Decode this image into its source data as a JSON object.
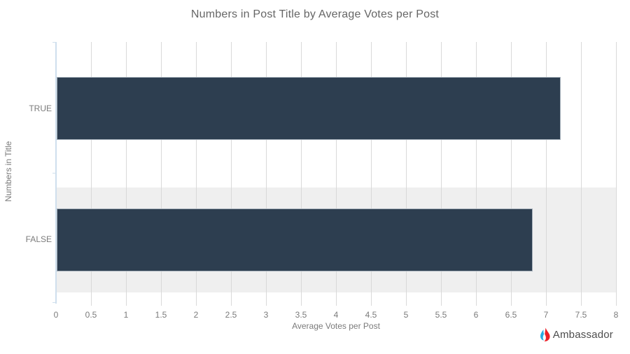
{
  "chart_data": {
    "type": "bar",
    "orientation": "horizontal",
    "title": "Numbers in Post Title by Average Votes per Post",
    "categories": [
      "TRUE",
      "FALSE"
    ],
    "values": [
      7.2,
      6.8
    ],
    "xlabel": "Average Votes per Post",
    "ylabel": "Numbers in Title",
    "xlim": [
      0,
      8
    ],
    "xticks": [
      "0",
      "0.5",
      "1",
      "1.5",
      "2",
      "2.5",
      "3",
      "3.5",
      "4",
      "4.5",
      "5",
      "5.5",
      "6",
      "6.5",
      "7",
      "7.5",
      "8"
    ],
    "grid": true,
    "legend_position": "none",
    "bar_color": "#2d3e50",
    "row_band_color": "#efefef",
    "gridline_color": "#d9d9d9",
    "axis_line_color": "#cfdfed"
  },
  "branding": {
    "label": "Ambassador",
    "icon": "ambassador-flame-icon",
    "icon_color_left": "#29abe2",
    "icon_color_right": "#ec2027"
  }
}
